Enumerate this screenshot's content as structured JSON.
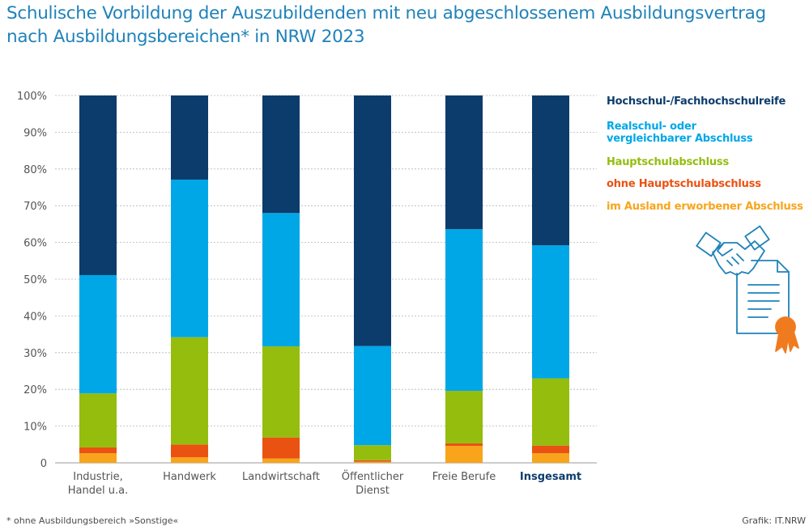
{
  "title_line1": "Schulische Vorbildung der Auszubildenden mit neu abgeschlossenem Ausbildungsvertrag",
  "title_line2": "nach Ausbildungsbereichen* in NRW 2023",
  "footnote": "*  ohne Ausbildungsbereich »Sonstige«",
  "credit": "Grafik: IT.NRW",
  "legend": [
    {
      "lines": [
        "Hochschul-/Fachhochschulreife"
      ],
      "color": "#0c3c6c"
    },
    {
      "lines": [
        "Realschul- oder",
        "vergleichbarer Abschluss"
      ],
      "color": "#00a7e7"
    },
    {
      "lines": [
        "Hauptschulabschluss"
      ],
      "color": "#95bd0d"
    },
    {
      "lines": [
        "ohne Hauptschulabschluss"
      ],
      "color": "#ea5212"
    },
    {
      "lines": [
        "im Ausland erworbener Abschluss"
      ],
      "color": "#f8a51b"
    }
  ],
  "chart_data": {
    "type": "bar",
    "stacked": true,
    "categories": [
      {
        "lines": [
          "Industrie,",
          "Handel u.a."
        ],
        "bold": false
      },
      {
        "lines": [
          "Handwerk"
        ],
        "bold": false
      },
      {
        "lines": [
          "Landwirtschaft"
        ],
        "bold": false
      },
      {
        "lines": [
          "Öffentlicher",
          "Dienst"
        ],
        "bold": false
      },
      {
        "lines": [
          "Freie Berufe"
        ],
        "bold": false
      },
      {
        "lines": [
          "Insgesamt"
        ],
        "bold": true
      }
    ],
    "series": [
      {
        "name": "im Ausland erworbener Abschluss",
        "color": "#f8a51b",
        "values": [
          2.6,
          1.5,
          1.2,
          0.3,
          4.6,
          2.6
        ]
      },
      {
        "name": "ohne Hauptschulabschluss",
        "color": "#ea5212",
        "values": [
          1.6,
          3.5,
          5.7,
          0.4,
          0.7,
          2.1
        ]
      },
      {
        "name": "Hauptschulabschluss",
        "color": "#95bd0d",
        "values": [
          14.7,
          29.2,
          24.8,
          4.1,
          14.3,
          18.3
        ]
      },
      {
        "name": "Realschul- oder vergleichbarer Abschluss",
        "color": "#00a7e7",
        "values": [
          32.2,
          42.9,
          36.3,
          27.0,
          44.0,
          36.2
        ]
      },
      {
        "name": "Hochschul-/Fachhochschulreife",
        "color": "#0c3c6c",
        "values": [
          48.9,
          22.9,
          32.0,
          68.2,
          36.4,
          40.8
        ]
      }
    ],
    "ylim": [
      0,
      100
    ],
    "yticks": [
      {
        "value": 0,
        "label": "0"
      },
      {
        "value": 10,
        "label": "10%"
      },
      {
        "value": 20,
        "label": "20%"
      },
      {
        "value": 30,
        "label": "30%"
      },
      {
        "value": 40,
        "label": "40%"
      },
      {
        "value": 50,
        "label": "50%"
      },
      {
        "value": 60,
        "label": "60%"
      },
      {
        "value": 70,
        "label": "70%"
      },
      {
        "value": 80,
        "label": "80%"
      },
      {
        "value": 90,
        "label": "90%"
      },
      {
        "value": 100,
        "label": "100%"
      }
    ],
    "grid": true,
    "legend_position": "right"
  },
  "icon": "handshake-certificate-icon"
}
